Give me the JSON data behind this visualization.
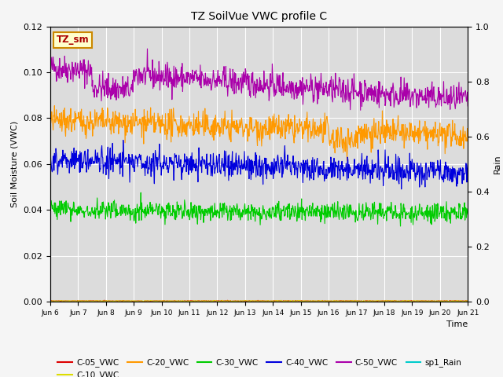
{
  "title": "TZ SoilVue VWC profile C",
  "xlabel": "Time",
  "ylabel_left": "Soil Moisture (VWC)",
  "ylabel_right": "Rain",
  "ylim_left": [
    0.0,
    0.12
  ],
  "ylim_right": [
    0.0,
    1.0
  ],
  "yticks_left": [
    0.0,
    0.02,
    0.04,
    0.06,
    0.08,
    0.1,
    0.12
  ],
  "yticks_right": [
    0.0,
    0.2,
    0.4,
    0.6,
    0.8,
    1.0
  ],
  "n_points": 900,
  "series": {
    "C-05_VWC": {
      "color": "#dd0000"
    },
    "C-10_VWC": {
      "color": "#dddd00"
    },
    "C-20_VWC": {
      "color": "#ff9900"
    },
    "C-30_VWC": {
      "color": "#00cc00"
    },
    "C-40_VWC": {
      "color": "#0000dd"
    },
    "C-50_VWC": {
      "color": "#aa00aa"
    },
    "sp1_Rain": {
      "color": "#00cccc"
    }
  },
  "legend_box_label": "TZ_sm",
  "legend_box_facecolor": "#ffffcc",
  "legend_box_edgecolor": "#cc8800",
  "legend_box_textcolor": "#aa0000",
  "plot_bg_color": "#dcdcdc",
  "fig_bg_color": "#f5f5f5",
  "grid_color": "#ffffff",
  "xtick_labels": [
    "Jun 6",
    "Jun 7",
    "Jun 8",
    "Jun 9",
    "Jun 10",
    "Jun 11",
    "Jun 12",
    "Jun 13",
    "Jun 14",
    "Jun 15",
    "Jun 16",
    "Jun 17",
    "Jun 18",
    "Jun 19",
    "Jun 20",
    "Jun 21"
  ]
}
